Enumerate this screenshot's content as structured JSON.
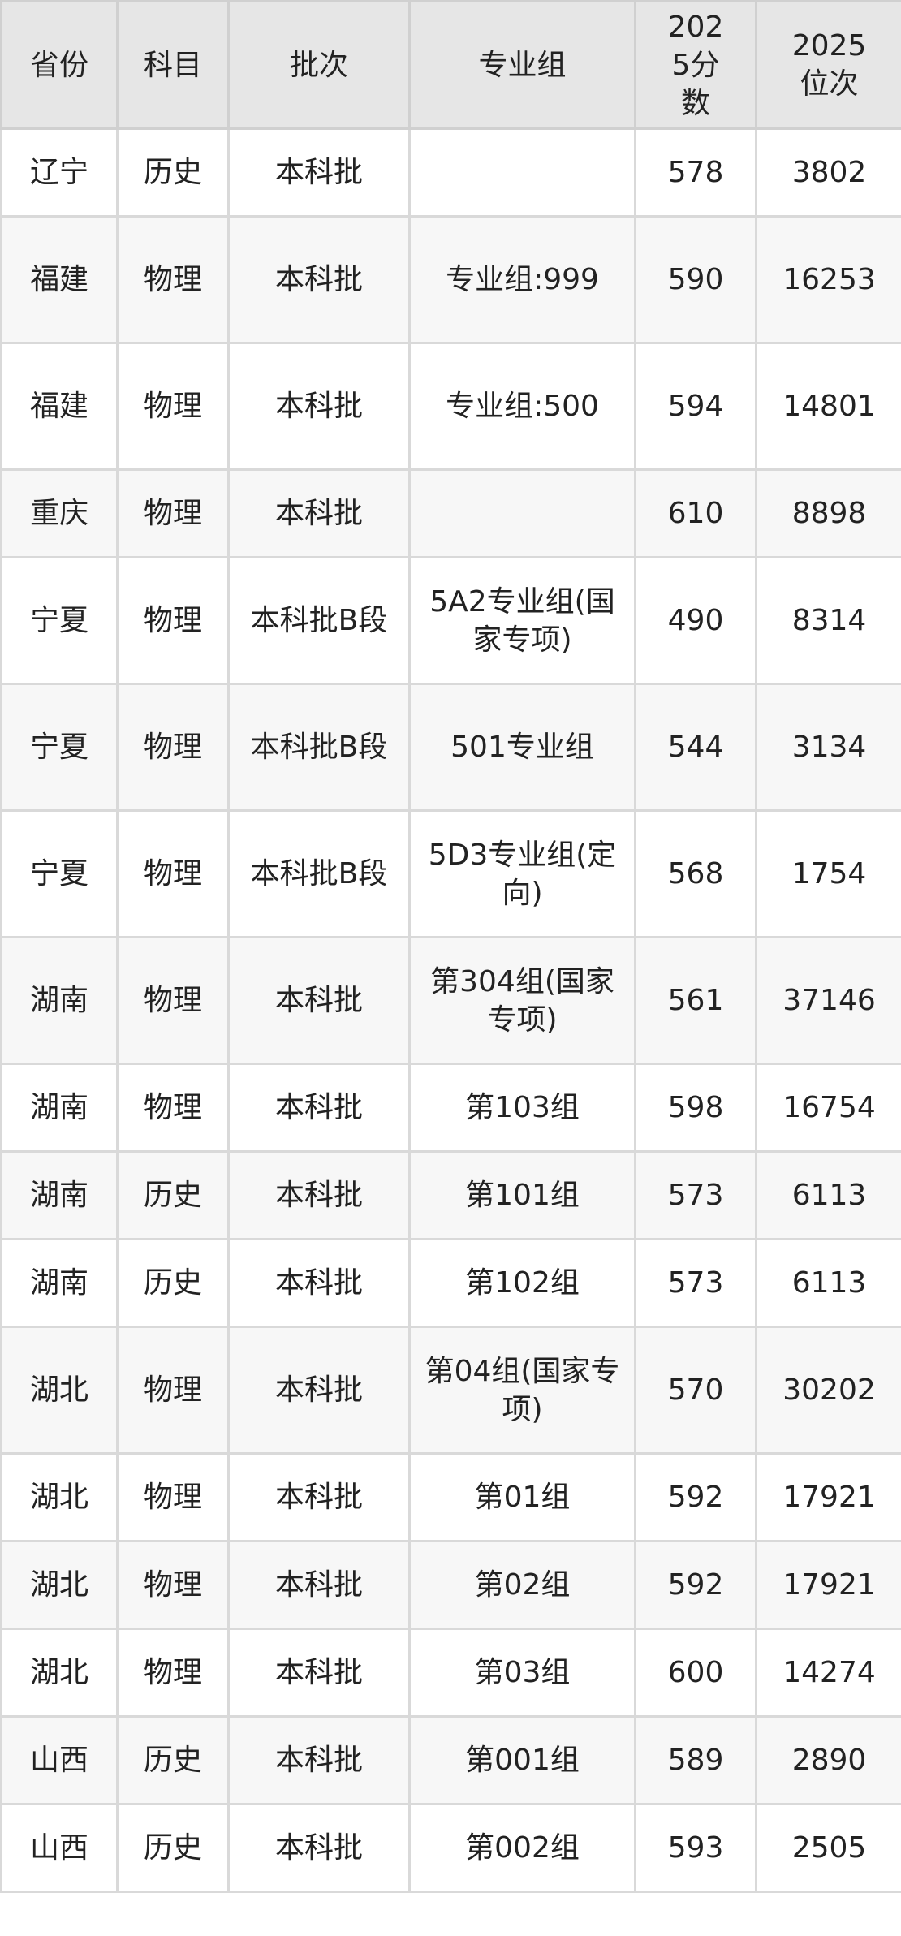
{
  "table": {
    "headers": [
      "省份",
      "科目",
      "批次",
      "专业组",
      "2025分数",
      "2025位次"
    ],
    "rows": [
      [
        "辽宁",
        "历史",
        "本科批",
        "",
        "578",
        "3802"
      ],
      [
        "福建",
        "物理",
        "本科批",
        "专业组:999",
        "590",
        "16253"
      ],
      [
        "福建",
        "物理",
        "本科批",
        "专业组:500",
        "594",
        "14801"
      ],
      [
        "重庆",
        "物理",
        "本科批",
        "",
        "610",
        "8898"
      ],
      [
        "宁夏",
        "物理",
        "本科批B段",
        "5A2专业组(国家专项)",
        "490",
        "8314"
      ],
      [
        "宁夏",
        "物理",
        "本科批B段",
        "501专业组",
        "544",
        "3134"
      ],
      [
        "宁夏",
        "物理",
        "本科批B段",
        "5D3专业组(定向)",
        "568",
        "1754"
      ],
      [
        "湖南",
        "物理",
        "本科批",
        "第304组(国家专项)",
        "561",
        "37146"
      ],
      [
        "湖南",
        "物理",
        "本科批",
        "第103组",
        "598",
        "16754"
      ],
      [
        "湖南",
        "历史",
        "本科批",
        "第101组",
        "573",
        "6113"
      ],
      [
        "湖南",
        "历史",
        "本科批",
        "第102组",
        "573",
        "6113"
      ],
      [
        "湖北",
        "物理",
        "本科批",
        "第04组(国家专项)",
        "570",
        "30202"
      ],
      [
        "湖北",
        "物理",
        "本科批",
        "第01组",
        "592",
        "17921"
      ],
      [
        "湖北",
        "物理",
        "本科批",
        "第02组",
        "592",
        "17921"
      ],
      [
        "湖北",
        "物理",
        "本科批",
        "第03组",
        "600",
        "14274"
      ],
      [
        "山西",
        "历史",
        "本科批",
        "第001组",
        "589",
        "2890"
      ],
      [
        "山西",
        "历史",
        "本科批",
        "第002组",
        "593",
        "2505"
      ]
    ]
  }
}
